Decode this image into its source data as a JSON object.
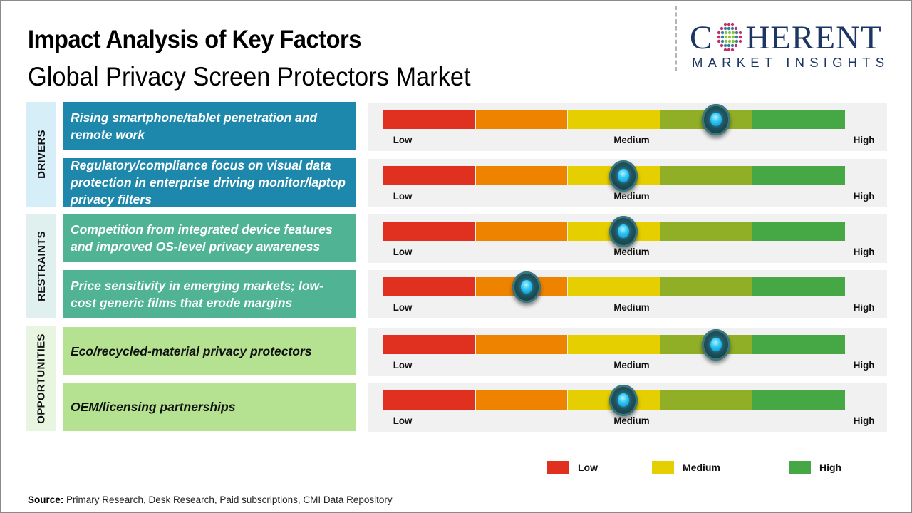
{
  "header": {
    "title": "Impact Analysis of Key Factors",
    "subtitle": "Global Privacy Screen Protectors Market"
  },
  "logo": {
    "main_left": "C",
    "main_right": "HERENT",
    "sub": "MARKET INSIGHTS",
    "colors": {
      "text": "#1c3664",
      "dot_pink": "#c2306c",
      "dot_green": "#8cc63f",
      "dot_blue": "#3a7fa0"
    }
  },
  "scale": {
    "low_label": "Low",
    "medium_label": "Medium",
    "high_label": "High",
    "segment_colors": [
      "#e03020",
      "#ee8300",
      "#e6cf00",
      "#90ae26",
      "#45a844"
    ]
  },
  "categories": [
    {
      "label": "DRIVERS",
      "bg": "#d6eef8",
      "factor_bg": "#1e88ac",
      "factor_text_color": "#ffffff"
    },
    {
      "label": "RESTRAINTS",
      "bg": "#e0f0ee",
      "factor_bg": "#50b394",
      "factor_text_color": "#ffffff"
    },
    {
      "label": "OPPORTUNITIES",
      "bg": "#e8f5e0",
      "factor_bg": "#b5e290",
      "factor_text_color": "#111111"
    }
  ],
  "chart_data": {
    "type": "gauge",
    "title": "Impact Analysis of Key Factors",
    "subtitle": "Global Privacy Screen Protectors Market",
    "scale_range": [
      0,
      1
    ],
    "scale_labels": [
      "Low",
      "Medium",
      "High"
    ],
    "factors": [
      {
        "category": "DRIVERS",
        "text": "Rising smartphone/tablet penetration and remote work",
        "impact": 0.72,
        "impact_level": "Medium-High"
      },
      {
        "category": "DRIVERS",
        "text": "Regulatory/compliance focus on visual data protection in enterprise driving monitor/laptop privacy filters",
        "impact": 0.52,
        "impact_level": "Medium"
      },
      {
        "category": "RESTRAINTS",
        "text": "Competition from integrated device features and improved OS-level privacy awareness",
        "impact": 0.52,
        "impact_level": "Medium"
      },
      {
        "category": "RESTRAINTS",
        "text": "Price sensitivity in emerging markets; low-cost generic films that erode margins",
        "impact": 0.31,
        "impact_level": "Low-Medium"
      },
      {
        "category": "OPPORTUNITIES",
        "text": "Eco/recycled-material privacy protectors",
        "impact": 0.72,
        "impact_level": "Medium-High"
      },
      {
        "category": "OPPORTUNITIES",
        "text": "OEM/licensing partnerships",
        "impact": 0.52,
        "impact_level": "Medium"
      }
    ],
    "legend": [
      {
        "label": "Low",
        "color": "#e03020"
      },
      {
        "label": "Medium",
        "color": "#e6cf00"
      },
      {
        "label": "High",
        "color": "#45a844"
      }
    ],
    "legend_position": "bottom-right"
  },
  "footer": {
    "source_label": "Source:",
    "source_text": " Primary Research, Desk Research, Paid subscriptions, CMI Data Repository"
  }
}
